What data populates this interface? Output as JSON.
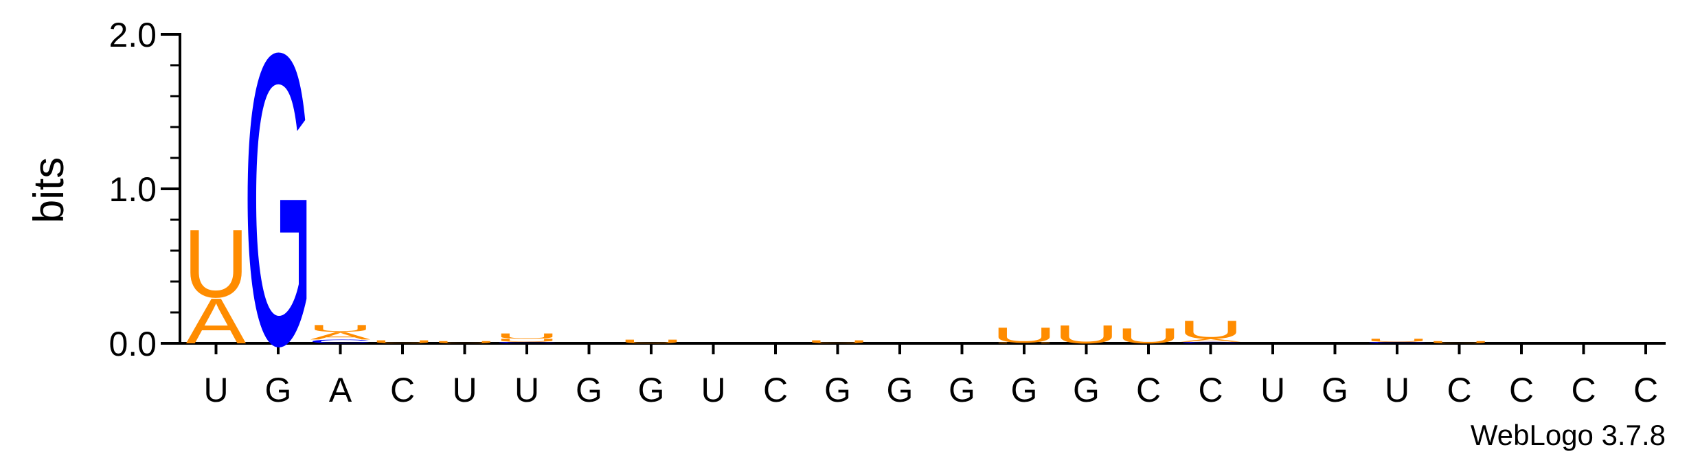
{
  "chart_data": {
    "type": "sequence_logo",
    "ylabel": "bits",
    "ylim": [
      0,
      2.0
    ],
    "yticks": [
      "0.0",
      "1.0",
      "2.0"
    ],
    "positions": [
      "U",
      "G",
      "A",
      "C",
      "U",
      "U",
      "G",
      "G",
      "U",
      "C",
      "G",
      "G",
      "G",
      "G",
      "G",
      "C",
      "C",
      "U",
      "G",
      "U",
      "C",
      "C",
      "C",
      "C"
    ],
    "stacks": [
      [
        {
          "letter": "A",
          "bits": 0.3
        },
        {
          "letter": "U",
          "bits": 0.45
        }
      ],
      [
        {
          "letter": "G",
          "bits": 1.93
        }
      ],
      [
        {
          "letter": "C",
          "bits": 0.025
        },
        {
          "letter": "A",
          "bits": 0.05
        },
        {
          "letter": "U",
          "bits": 0.045
        }
      ],
      [
        {
          "letter": "U",
          "bits": 0.02
        }
      ],
      [
        {
          "letter": "U",
          "bits": 0.015
        }
      ],
      [
        {
          "letter": "C",
          "bits": 0.01
        },
        {
          "letter": "U",
          "bits": 0.02
        },
        {
          "letter": "U",
          "bits": 0.035
        }
      ],
      [],
      [
        {
          "letter": "U",
          "bits": 0.025
        }
      ],
      [],
      [],
      [
        {
          "letter": "U",
          "bits": 0.02
        }
      ],
      [],
      [],
      [
        {
          "letter": "U",
          "bits": 0.005
        },
        {
          "letter": "U",
          "bits": 0.1
        }
      ],
      [
        {
          "letter": "U",
          "bits": 0.12
        }
      ],
      [
        {
          "letter": "U",
          "bits": 0.1
        }
      ],
      [
        {
          "letter": "C",
          "bits": 0.01
        },
        {
          "letter": "A",
          "bits": 0.02
        },
        {
          "letter": "U",
          "bits": 0.12
        }
      ],
      [],
      [],
      [
        {
          "letter": "C",
          "bits": 0.01
        },
        {
          "letter": "U",
          "bits": 0.02
        }
      ],
      [
        {
          "letter": "U",
          "bits": 0.015
        }
      ],
      [],
      [],
      []
    ],
    "colors": {
      "A": "#FF8C00",
      "U": "#FF8C00",
      "G": "#0000FF",
      "C": "#0000FF"
    },
    "grid": false
  },
  "credit": "WebLogo 3.7.8"
}
